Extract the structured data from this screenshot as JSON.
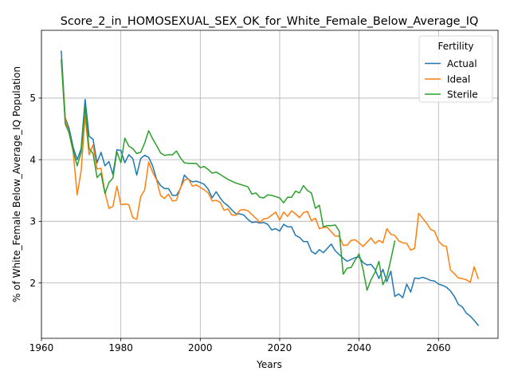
{
  "chart_data": {
    "type": "line",
    "title": "Score_2_in_HOMOSEXUAL_SEX_OK_for_White_Female_Below_Average_IQ",
    "xlabel": "Years",
    "ylabel": "% of White_Female Below_Average_IQ Population",
    "xlim": [
      1960,
      2075
    ],
    "ylim": [
      1.1,
      6.1
    ],
    "xticks": [
      1960,
      1980,
      2000,
      2020,
      2040,
      2060
    ],
    "yticks": [
      2,
      3,
      4,
      5
    ],
    "grid": true,
    "legend": {
      "title": "Fertility",
      "placement": "top-right"
    },
    "colors": {
      "Actual": "#1f77b4",
      "Ideal": "#ff7f0e",
      "Sterile": "#2ca02c"
    },
    "series": [
      {
        "name": "Actual",
        "points": [
          [
            1965,
            5.76
          ],
          [
            1966,
            4.68
          ],
          [
            1967,
            4.5
          ],
          [
            1968,
            4.2
          ],
          [
            1969,
            4.0
          ],
          [
            1970,
            4.18
          ],
          [
            1971,
            4.98
          ],
          [
            1972,
            4.38
          ],
          [
            1973,
            4.33
          ],
          [
            1974,
            3.95
          ],
          [
            1975,
            4.12
          ],
          [
            1976,
            3.9
          ],
          [
            1977,
            3.97
          ],
          [
            1978,
            3.76
          ],
          [
            1979,
            4.16
          ],
          [
            1980,
            4.15
          ],
          [
            1981,
            3.95
          ],
          [
            1982,
            4.08
          ],
          [
            1983,
            4.02
          ],
          [
            1984,
            3.75
          ],
          [
            1985,
            4.02
          ],
          [
            1986,
            4.07
          ],
          [
            1987,
            4.04
          ],
          [
            1988,
            3.9
          ],
          [
            1989,
            3.68
          ],
          [
            1990,
            3.58
          ],
          [
            1991,
            3.53
          ],
          [
            1992,
            3.53
          ],
          [
            1993,
            3.42
          ],
          [
            1994,
            3.42
          ],
          [
            1995,
            3.53
          ],
          [
            1996,
            3.75
          ],
          [
            1997,
            3.68
          ],
          [
            1998,
            3.64
          ],
          [
            1999,
            3.65
          ],
          [
            2000,
            3.63
          ],
          [
            2001,
            3.6
          ],
          [
            2002,
            3.52
          ],
          [
            2003,
            3.38
          ],
          [
            2004,
            3.48
          ],
          [
            2005,
            3.38
          ],
          [
            2006,
            3.3
          ],
          [
            2007,
            3.25
          ],
          [
            2008,
            3.18
          ],
          [
            2009,
            3.12
          ],
          [
            2010,
            3.12
          ],
          [
            2011,
            3.1
          ],
          [
            2012,
            3.03
          ],
          [
            2013,
            2.98
          ],
          [
            2014,
            2.99
          ],
          [
            2015,
            2.97
          ],
          [
            2016,
            2.98
          ],
          [
            2017,
            2.95
          ],
          [
            2018,
            2.86
          ],
          [
            2019,
            2.88
          ],
          [
            2020,
            2.84
          ],
          [
            2021,
            2.95
          ],
          [
            2022,
            2.91
          ],
          [
            2023,
            2.91
          ],
          [
            2024,
            2.77
          ],
          [
            2025,
            2.74
          ],
          [
            2026,
            2.67
          ],
          [
            2027,
            2.67
          ],
          [
            2028,
            2.51
          ],
          [
            2029,
            2.47
          ],
          [
            2030,
            2.54
          ],
          [
            2031,
            2.49
          ],
          [
            2032,
            2.56
          ],
          [
            2033,
            2.63
          ],
          [
            2034,
            2.52
          ],
          [
            2035,
            2.46
          ],
          [
            2036,
            2.4
          ],
          [
            2037,
            2.35
          ],
          [
            2038,
            2.38
          ],
          [
            2039,
            2.41
          ],
          [
            2040,
            2.42
          ],
          [
            2041,
            2.33
          ],
          [
            2042,
            2.29
          ],
          [
            2043,
            2.3
          ],
          [
            2044,
            2.22
          ],
          [
            2045,
            2.07
          ],
          [
            2046,
            2.22
          ],
          [
            2047,
            2.02
          ],
          [
            2048,
            2.19
          ],
          [
            2049,
            1.78
          ],
          [
            2050,
            1.82
          ],
          [
            2051,
            1.76
          ],
          [
            2052,
            1.98
          ],
          [
            2053,
            1.85
          ],
          [
            2054,
            2.08
          ],
          [
            2055,
            2.07
          ],
          [
            2056,
            2.09
          ],
          [
            2057,
            2.07
          ],
          [
            2058,
            2.04
          ],
          [
            2059,
            2.03
          ],
          [
            2060,
            1.98
          ],
          [
            2061,
            1.96
          ],
          [
            2062,
            1.93
          ],
          [
            2063,
            1.87
          ],
          [
            2064,
            1.78
          ],
          [
            2065,
            1.65
          ],
          [
            2066,
            1.61
          ],
          [
            2067,
            1.51
          ],
          [
            2068,
            1.46
          ],
          [
            2069,
            1.39
          ],
          [
            2070,
            1.31
          ]
        ]
      },
      {
        "name": "Ideal",
        "points": [
          [
            1965,
            5.62
          ],
          [
            1966,
            4.66
          ],
          [
            1967,
            4.42
          ],
          [
            1968,
            4.12
          ],
          [
            1969,
            3.43
          ],
          [
            1970,
            3.82
          ],
          [
            1971,
            4.71
          ],
          [
            1972,
            4.08
          ],
          [
            1973,
            4.24
          ],
          [
            1974,
            3.85
          ],
          [
            1975,
            3.86
          ],
          [
            1976,
            3.47
          ],
          [
            1977,
            3.21
          ],
          [
            1978,
            3.24
          ],
          [
            1979,
            3.57
          ],
          [
            1980,
            3.27
          ],
          [
            1981,
            3.28
          ],
          [
            1982,
            3.27
          ],
          [
            1983,
            3.06
          ],
          [
            1984,
            3.03
          ],
          [
            1985,
            3.4
          ],
          [
            1986,
            3.51
          ],
          [
            1987,
            3.96
          ],
          [
            1988,
            3.8
          ],
          [
            1989,
            3.67
          ],
          [
            1990,
            3.42
          ],
          [
            1991,
            3.37
          ],
          [
            1992,
            3.44
          ],
          [
            1993,
            3.33
          ],
          [
            1994,
            3.34
          ],
          [
            1995,
            3.54
          ],
          [
            1996,
            3.67
          ],
          [
            1997,
            3.69
          ],
          [
            1998,
            3.57
          ],
          [
            1999,
            3.59
          ],
          [
            2000,
            3.55
          ],
          [
            2001,
            3.51
          ],
          [
            2002,
            3.46
          ],
          [
            2003,
            3.33
          ],
          [
            2004,
            3.34
          ],
          [
            2005,
            3.31
          ],
          [
            2006,
            3.18
          ],
          [
            2007,
            3.2
          ],
          [
            2008,
            3.1
          ],
          [
            2009,
            3.1
          ],
          [
            2010,
            3.18
          ],
          [
            2011,
            3.19
          ],
          [
            2012,
            3.17
          ],
          [
            2013,
            3.11
          ],
          [
            2014,
            3.05
          ],
          [
            2015,
            2.98
          ],
          [
            2016,
            3.04
          ],
          [
            2017,
            3.05
          ],
          [
            2018,
            3.1
          ],
          [
            2019,
            3.15
          ],
          [
            2020,
            3.02
          ],
          [
            2021,
            3.15
          ],
          [
            2022,
            3.08
          ],
          [
            2023,
            3.17
          ],
          [
            2024,
            3.12
          ],
          [
            2025,
            3.06
          ],
          [
            2026,
            3.14
          ],
          [
            2027,
            3.16
          ],
          [
            2028,
            3.01
          ],
          [
            2029,
            3.05
          ],
          [
            2030,
            2.88
          ],
          [
            2031,
            2.9
          ],
          [
            2032,
            2.9
          ],
          [
            2033,
            2.83
          ],
          [
            2034,
            2.76
          ],
          [
            2035,
            2.76
          ],
          [
            2036,
            2.61
          ],
          [
            2037,
            2.61
          ],
          [
            2038,
            2.69
          ],
          [
            2039,
            2.7
          ],
          [
            2040,
            2.65
          ],
          [
            2041,
            2.59
          ],
          [
            2042,
            2.66
          ],
          [
            2043,
            2.73
          ],
          [
            2044,
            2.64
          ],
          [
            2045,
            2.69
          ],
          [
            2046,
            2.65
          ],
          [
            2047,
            2.88
          ],
          [
            2048,
            2.79
          ],
          [
            2049,
            2.77
          ],
          [
            2050,
            2.68
          ],
          [
            2051,
            2.65
          ],
          [
            2052,
            2.64
          ],
          [
            2053,
            2.53
          ],
          [
            2054,
            2.56
          ],
          [
            2055,
            3.13
          ],
          [
            2056,
            3.05
          ],
          [
            2057,
            2.97
          ],
          [
            2058,
            2.87
          ],
          [
            2059,
            2.84
          ],
          [
            2060,
            2.68
          ],
          [
            2061,
            2.61
          ],
          [
            2062,
            2.59
          ],
          [
            2063,
            2.21
          ],
          [
            2064,
            2.15
          ],
          [
            2065,
            2.08
          ],
          [
            2066,
            2.07
          ],
          [
            2067,
            2.05
          ],
          [
            2068,
            2.01
          ],
          [
            2069,
            2.26
          ],
          [
            2070,
            2.07
          ]
        ]
      },
      {
        "name": "Sterile",
        "points": [
          [
            1965,
            5.62
          ],
          [
            1966,
            4.58
          ],
          [
            1967,
            4.43
          ],
          [
            1968,
            4.15
          ],
          [
            1969,
            3.9
          ],
          [
            1970,
            4.12
          ],
          [
            1971,
            4.86
          ],
          [
            1972,
            4.18
          ],
          [
            1973,
            4.1
          ],
          [
            1974,
            3.71
          ],
          [
            1975,
            3.78
          ],
          [
            1976,
            3.45
          ],
          [
            1977,
            3.63
          ],
          [
            1978,
            3.7
          ],
          [
            1979,
            4.13
          ],
          [
            1980,
            3.95
          ],
          [
            1981,
            4.35
          ],
          [
            1982,
            4.22
          ],
          [
            1983,
            4.18
          ],
          [
            1984,
            4.1
          ],
          [
            1985,
            4.12
          ],
          [
            1986,
            4.27
          ],
          [
            1987,
            4.47
          ],
          [
            1988,
            4.34
          ],
          [
            1989,
            4.23
          ],
          [
            1990,
            4.11
          ],
          [
            1991,
            4.07
          ],
          [
            1992,
            4.08
          ],
          [
            1993,
            4.08
          ],
          [
            1994,
            4.14
          ],
          [
            1995,
            4.03
          ],
          [
            1996,
            3.95
          ],
          [
            1997,
            3.94
          ],
          [
            1998,
            3.94
          ],
          [
            1999,
            3.94
          ],
          [
            2000,
            3.87
          ],
          [
            2001,
            3.89
          ],
          [
            2002,
            3.84
          ],
          [
            2003,
            3.78
          ],
          [
            2004,
            3.8
          ],
          [
            2005,
            3.76
          ],
          [
            2006,
            3.72
          ],
          [
            2007,
            3.68
          ],
          [
            2008,
            3.65
          ],
          [
            2009,
            3.62
          ],
          [
            2010,
            3.6
          ],
          [
            2011,
            3.58
          ],
          [
            2012,
            3.56
          ],
          [
            2013,
            3.44
          ],
          [
            2014,
            3.46
          ],
          [
            2015,
            3.39
          ],
          [
            2016,
            3.38
          ],
          [
            2017,
            3.43
          ],
          [
            2018,
            3.42
          ],
          [
            2019,
            3.4
          ],
          [
            2020,
            3.38
          ],
          [
            2021,
            3.3
          ],
          [
            2022,
            3.39
          ],
          [
            2023,
            3.39
          ],
          [
            2024,
            3.49
          ],
          [
            2025,
            3.46
          ],
          [
            2026,
            3.58
          ],
          [
            2027,
            3.5
          ],
          [
            2028,
            3.46
          ],
          [
            2029,
            3.21
          ],
          [
            2030,
            3.26
          ],
          [
            2031,
            2.91
          ],
          [
            2032,
            2.93
          ],
          [
            2033,
            2.93
          ],
          [
            2034,
            2.94
          ],
          [
            2035,
            2.84
          ],
          [
            2036,
            2.14
          ],
          [
            2037,
            2.24
          ],
          [
            2038,
            2.25
          ],
          [
            2039,
            2.37
          ],
          [
            2040,
            2.47
          ],
          [
            2041,
            2.22
          ],
          [
            2042,
            1.88
          ],
          [
            2043,
            2.05
          ],
          [
            2044,
            2.17
          ],
          [
            2045,
            2.35
          ],
          [
            2046,
            1.97
          ],
          [
            2047,
            2.1
          ],
          [
            2048,
            2.38
          ],
          [
            2049,
            2.68
          ]
        ]
      }
    ]
  }
}
